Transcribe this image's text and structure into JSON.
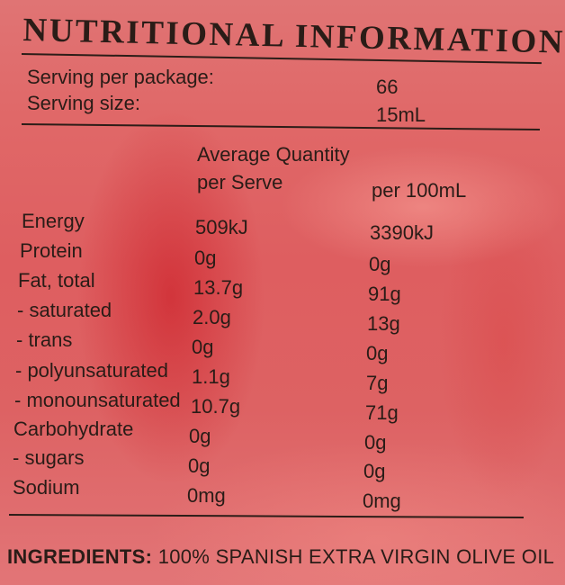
{
  "title": "NUTRITIONAL INFORMATION",
  "servings": {
    "per_package_label": "Serving per package:",
    "per_package_value": "66",
    "size_label": "Serving size:",
    "size_value": "15mL"
  },
  "columns": {
    "per_serve_line1": "Average Quantity",
    "per_serve_line2": "per Serve",
    "per_100ml": "per 100mL"
  },
  "rows": [
    {
      "nutrient": "Energy",
      "per_serve": "509kJ",
      "per_100ml": "3390kJ"
    },
    {
      "nutrient": "Protein",
      "per_serve": "0g",
      "per_100ml": "0g"
    },
    {
      "nutrient": "Fat, total",
      "per_serve": "13.7g",
      "per_100ml": "91g"
    },
    {
      "nutrient": "- saturated",
      "per_serve": "2.0g",
      "per_100ml": "13g"
    },
    {
      "nutrient": "- trans",
      "per_serve": "0g",
      "per_100ml": "0g"
    },
    {
      "nutrient": "- polyunsaturated",
      "per_serve": "1.1g",
      "per_100ml": "7g"
    },
    {
      "nutrient": "- monounsaturated",
      "per_serve": "10.7g",
      "per_100ml": "71g"
    },
    {
      "nutrient": "Carbohydrate",
      "per_serve": "0g",
      "per_100ml": "0g"
    },
    {
      "nutrient": "- sugars",
      "per_serve": "0g",
      "per_100ml": "0g"
    },
    {
      "nutrient": "Sodium",
      "per_serve": "0mg",
      "per_100ml": "0mg"
    }
  ],
  "ingredients": {
    "label": "INGREDIENTS:",
    "text": "100% SPANISH EXTRA VIRGIN OLIVE OIL"
  },
  "colors": {
    "label_background": "#de6062",
    "ink": "#2a1c17"
  }
}
